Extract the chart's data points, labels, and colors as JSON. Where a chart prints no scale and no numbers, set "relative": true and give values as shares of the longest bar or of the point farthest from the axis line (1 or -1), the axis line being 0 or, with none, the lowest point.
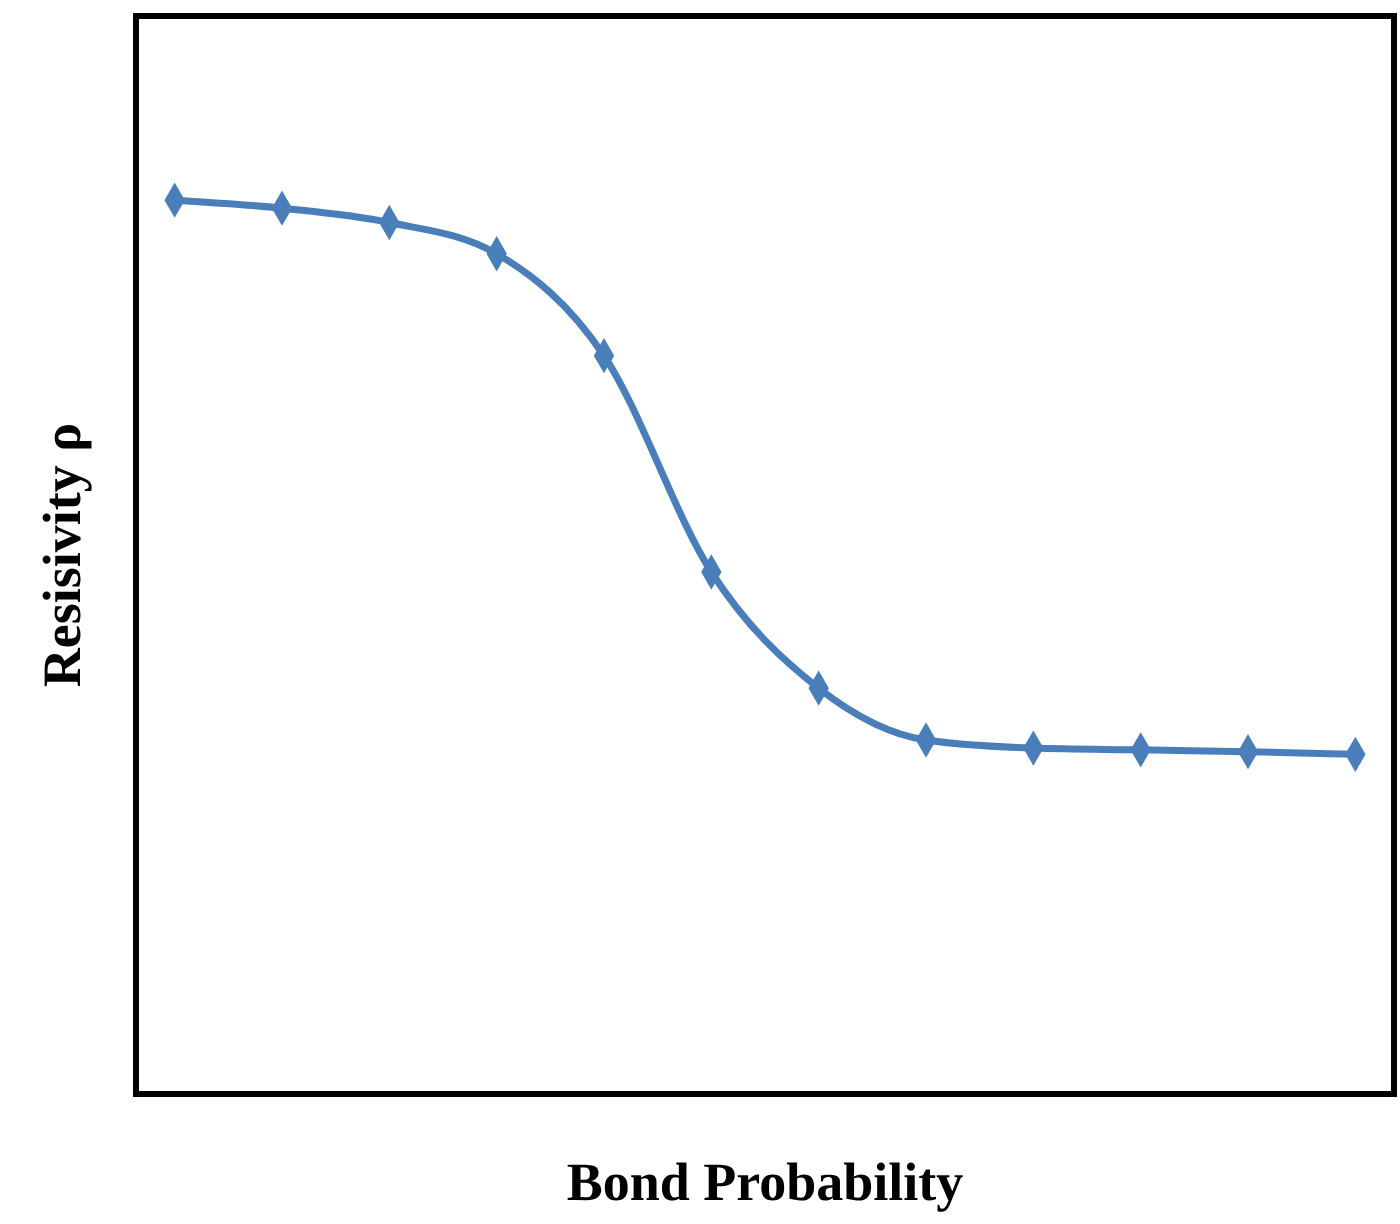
{
  "chart_data": {
    "type": "line",
    "relative": true,
    "xlabel": "Bond Probability",
    "ylabel": "Resisivity  ρ",
    "marker": "diamond",
    "line_style": "solid",
    "categories": [
      null,
      null,
      null,
      null,
      null,
      null,
      null,
      null,
      null,
      null,
      null,
      null
    ],
    "series": [
      {
        "color": "#4a7ebb",
        "values": [
          1,
          0.991,
          0.975,
          0.94,
          0.826,
          0.584,
          0.454,
          0.396,
          0.387,
          0.385,
          0.383,
          0.38
        ]
      }
    ]
  }
}
